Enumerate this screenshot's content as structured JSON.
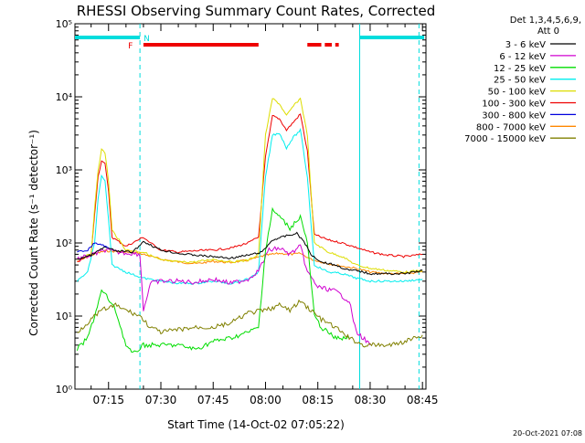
{
  "chart_data": {
    "type": "line",
    "title": "RHESSI Observing Summary Count Rates, Corrected",
    "ylabel": "Corrected Count Rate (s⁻¹ detector⁻¹)",
    "xlabel": "Start Time (14-Oct-02 07:05:22)",
    "footer": "20-Oct-2021 07:08",
    "yscale": "log",
    "ylim": [
      1,
      100000
    ],
    "y_ticks": [
      {
        "value": 1,
        "label": "10⁰"
      },
      {
        "value": 10,
        "label": "10¹"
      },
      {
        "value": 100,
        "label": "10²"
      },
      {
        "value": 1000,
        "label": "10³"
      },
      {
        "value": 10000,
        "label": "10⁴"
      },
      {
        "value": 100000,
        "label": "10⁵"
      }
    ],
    "xlim": [
      "07:05:22",
      "08:46:00"
    ],
    "x_ticks": [
      "07:15",
      "07:30",
      "07:45",
      "08:00",
      "08:15",
      "08:30",
      "08:45"
    ],
    "legend_header": [
      "Det 1,3,4,5,6,9,",
      "Att 0"
    ],
    "legend_position": "right",
    "series": [
      {
        "name": "3 - 6 keV",
        "color": "#000000",
        "points": [
          [
            "07:06",
            60
          ],
          [
            "07:10",
            68
          ],
          [
            "07:14",
            88
          ],
          [
            "07:17",
            78
          ],
          [
            "07:22",
            75
          ],
          [
            "07:25",
            105
          ],
          [
            "07:30",
            80
          ],
          [
            "07:35",
            72
          ],
          [
            "07:40",
            68
          ],
          [
            "07:45",
            65
          ],
          [
            "07:50",
            62
          ],
          [
            "07:55",
            68
          ],
          [
            "07:59",
            75
          ],
          [
            "08:02",
            110
          ],
          [
            "08:06",
            125
          ],
          [
            "08:09",
            135
          ],
          [
            "08:11",
            105
          ],
          [
            "08:13",
            70
          ],
          [
            "08:16",
            55
          ],
          [
            "08:20",
            50
          ],
          [
            "08:24",
            42
          ],
          [
            "08:26",
            42
          ],
          [
            "08:30",
            38
          ],
          [
            "08:35",
            38
          ],
          [
            "08:40",
            38
          ],
          [
            "08:45",
            42
          ]
        ]
      },
      {
        "name": "6 - 12 keV",
        "color": "#d000d0",
        "points": [
          [
            "07:06",
            60
          ],
          [
            "07:10",
            68
          ],
          [
            "07:14",
            80
          ],
          [
            "07:17",
            75
          ],
          [
            "07:22",
            72
          ],
          [
            "07:24",
            70
          ],
          [
            "07:25",
            12
          ],
          [
            "07:27",
            28
          ],
          [
            "07:30",
            30
          ],
          [
            "07:35",
            30
          ],
          [
            "07:40",
            29
          ],
          [
            "07:45",
            32
          ],
          [
            "07:50",
            28
          ],
          [
            "07:55",
            32
          ],
          [
            "07:58",
            42
          ],
          [
            "08:01",
            80
          ],
          [
            "08:04",
            85
          ],
          [
            "08:07",
            70
          ],
          [
            "08:10",
            90
          ],
          [
            "08:12",
            40
          ],
          [
            "08:15",
            25
          ],
          [
            "08:20",
            22
          ],
          [
            "08:24",
            16
          ],
          [
            "08:26",
            6
          ],
          [
            "08:28",
            5
          ],
          [
            "08:30",
            4
          ]
        ]
      },
      {
        "name": "12 - 25 keV",
        "color": "#00dd00",
        "points": [
          [
            "07:06",
            3.5
          ],
          [
            "07:09",
            5
          ],
          [
            "07:11",
            10
          ],
          [
            "07:13",
            22
          ],
          [
            "07:14",
            20
          ],
          [
            "07:17",
            12
          ],
          [
            "07:20",
            4
          ],
          [
            "07:22",
            3
          ],
          [
            "07:25",
            4
          ],
          [
            "07:30",
            4
          ],
          [
            "07:35",
            4
          ],
          [
            "07:40",
            3.5
          ],
          [
            "07:45",
            4.5
          ],
          [
            "07:50",
            5
          ],
          [
            "07:55",
            6
          ],
          [
            "07:58",
            7
          ],
          [
            "08:00",
            80
          ],
          [
            "08:02",
            280
          ],
          [
            "08:04",
            230
          ],
          [
            "08:07",
            160
          ],
          [
            "08:10",
            230
          ],
          [
            "08:12",
            100
          ],
          [
            "08:14",
            10
          ],
          [
            "08:16",
            7
          ],
          [
            "08:20",
            5
          ],
          [
            "08:24",
            5
          ]
        ]
      },
      {
        "name": "25 - 50 keV",
        "color": "#00eeee",
        "points": [
          [
            "07:06",
            30
          ],
          [
            "07:09",
            40
          ],
          [
            "07:11",
            100
          ],
          [
            "07:12",
            400
          ],
          [
            "07:13",
            820
          ],
          [
            "07:14",
            700
          ],
          [
            "07:15",
            200
          ],
          [
            "07:16",
            50
          ],
          [
            "07:20",
            40
          ],
          [
            "07:25",
            33
          ],
          [
            "07:30",
            30
          ],
          [
            "07:35",
            28
          ],
          [
            "07:40",
            28
          ],
          [
            "07:45",
            30
          ],
          [
            "07:50",
            28
          ],
          [
            "07:55",
            32
          ],
          [
            "07:58",
            40
          ],
          [
            "08:00",
            800
          ],
          [
            "08:02",
            3000
          ],
          [
            "08:04",
            3200
          ],
          [
            "08:06",
            2000
          ],
          [
            "08:08",
            2800
          ],
          [
            "08:10",
            3500
          ],
          [
            "08:12",
            800
          ],
          [
            "08:14",
            50
          ],
          [
            "08:18",
            40
          ],
          [
            "08:22",
            38
          ],
          [
            "08:26",
            33
          ],
          [
            "08:30",
            30
          ],
          [
            "08:35",
            30
          ],
          [
            "08:40",
            30
          ],
          [
            "08:45",
            32
          ]
        ]
      },
      {
        "name": "50 - 100 keV",
        "color": "#dddd00",
        "points": [
          [
            "07:06",
            60
          ],
          [
            "07:10",
            70
          ],
          [
            "07:11",
            300
          ],
          [
            "07:12",
            1000
          ],
          [
            "07:13",
            1900
          ],
          [
            "07:14",
            1700
          ],
          [
            "07:15",
            700
          ],
          [
            "07:16",
            150
          ],
          [
            "07:20",
            80
          ],
          [
            "07:25",
            75
          ],
          [
            "07:30",
            58
          ],
          [
            "07:35",
            55
          ],
          [
            "07:40",
            55
          ],
          [
            "07:45",
            60
          ],
          [
            "07:50",
            55
          ],
          [
            "07:55",
            58
          ],
          [
            "07:58",
            70
          ],
          [
            "08:00",
            3000
          ],
          [
            "08:02",
            9500
          ],
          [
            "08:04",
            8000
          ],
          [
            "08:06",
            5500
          ],
          [
            "08:08",
            7500
          ],
          [
            "08:10",
            9500
          ],
          [
            "08:12",
            3000
          ],
          [
            "08:14",
            100
          ],
          [
            "08:18",
            75
          ],
          [
            "08:22",
            65
          ],
          [
            "08:26",
            50
          ],
          [
            "08:30",
            45
          ],
          [
            "08:35",
            42
          ],
          [
            "08:40",
            40
          ],
          [
            "08:45",
            42
          ]
        ]
      },
      {
        "name": "100 - 300 keV",
        "color": "#ee0000",
        "points": [
          [
            "07:06",
            55
          ],
          [
            "07:10",
            70
          ],
          [
            "07:11",
            250
          ],
          [
            "07:12",
            800
          ],
          [
            "07:13",
            1350
          ],
          [
            "07:14",
            1200
          ],
          [
            "07:15",
            500
          ],
          [
            "07:16",
            120
          ],
          [
            "07:20",
            90
          ],
          [
            "07:25",
            120
          ],
          [
            "07:27",
            100
          ],
          [
            "07:30",
            80
          ],
          [
            "07:35",
            75
          ],
          [
            "07:40",
            78
          ],
          [
            "07:45",
            80
          ],
          [
            "07:50",
            85
          ],
          [
            "07:55",
            100
          ],
          [
            "07:58",
            120
          ],
          [
            "08:00",
            1500
          ],
          [
            "08:02",
            5500
          ],
          [
            "08:04",
            5000
          ],
          [
            "08:06",
            3500
          ],
          [
            "08:08",
            4500
          ],
          [
            "08:10",
            5800
          ],
          [
            "08:12",
            1800
          ],
          [
            "08:14",
            130
          ],
          [
            "08:18",
            110
          ],
          [
            "08:22",
            100
          ],
          [
            "08:25",
            90
          ],
          [
            "08:30",
            75
          ],
          [
            "08:35",
            68
          ],
          [
            "08:40",
            65
          ],
          [
            "08:45",
            70
          ]
        ]
      },
      {
        "name": "300 - 800 keV",
        "color": "#0000dd",
        "points": [
          [
            "07:06",
            75
          ],
          [
            "07:09",
            80
          ],
          [
            "07:11",
            100
          ],
          [
            "07:13",
            95
          ],
          [
            "07:15",
            85
          ]
        ]
      },
      {
        "name": "800 - 7000 keV",
        "color": "#ff8800",
        "points": [
          [
            "07:06",
            55
          ],
          [
            "07:10",
            68
          ],
          [
            "07:14",
            78
          ],
          [
            "07:18",
            76
          ],
          [
            "07:24",
            72
          ],
          [
            "07:30",
            60
          ],
          [
            "07:35",
            55
          ],
          [
            "07:40",
            52
          ],
          [
            "07:45",
            56
          ],
          [
            "07:50",
            54
          ],
          [
            "07:55",
            58
          ],
          [
            "08:00",
            68
          ],
          [
            "08:04",
            72
          ],
          [
            "08:08",
            70
          ],
          [
            "08:10",
            72
          ],
          [
            "08:13",
            60
          ],
          [
            "08:18",
            52
          ],
          [
            "08:22",
            48
          ],
          [
            "08:26",
            45
          ],
          [
            "08:30",
            40
          ],
          [
            "08:35",
            38
          ],
          [
            "08:40",
            38
          ],
          [
            "08:45",
            40
          ]
        ]
      },
      {
        "name": "7000 - 15000 keV",
        "color": "#808000",
        "points": [
          [
            "07:06",
            6
          ],
          [
            "07:10",
            9
          ],
          [
            "07:13",
            12
          ],
          [
            "07:17",
            14
          ],
          [
            "07:20",
            12
          ],
          [
            "07:24",
            10
          ],
          [
            "07:27",
            7
          ],
          [
            "07:30",
            6
          ],
          [
            "07:35",
            6.5
          ],
          [
            "07:40",
            7
          ],
          [
            "07:45",
            7
          ],
          [
            "07:50",
            8
          ],
          [
            "07:55",
            11
          ],
          [
            "08:00",
            12
          ],
          [
            "08:04",
            14
          ],
          [
            "08:07",
            12
          ],
          [
            "08:10",
            16
          ],
          [
            "08:13",
            12
          ],
          [
            "08:16",
            9
          ],
          [
            "08:20",
            7
          ],
          [
            "08:24",
            5
          ],
          [
            "08:28",
            4
          ],
          [
            "08:32",
            4
          ],
          [
            "08:36",
            4
          ],
          [
            "08:40",
            4.5
          ],
          [
            "08:45",
            5.5
          ]
        ]
      }
    ],
    "attenuator_bar": {
      "color": "#00dddd",
      "segments": [
        [
          "07:05:22",
          "07:24"
        ],
        [
          "08:27",
          "08:45:30"
        ]
      ],
      "markers": [
        {
          "time": "07:24",
          "label": "N"
        }
      ]
    },
    "flare_bar": {
      "color": "#ee0000",
      "segments": [
        [
          "07:25",
          "07:58"
        ],
        [
          "08:12",
          "08:16"
        ],
        [
          "08:17",
          "08:19"
        ],
        [
          "08:20",
          "08:21"
        ]
      ],
      "markers": [
        {
          "time": "07:23",
          "label": "F"
        }
      ]
    },
    "vlines": [
      {
        "time": "07:24",
        "style": "dashed",
        "color": "#00dddd"
      },
      {
        "time": "08:27",
        "style": "solid",
        "color": "#00dddd"
      },
      {
        "time": "08:44",
        "style": "dashed",
        "color": "#00dddd"
      }
    ]
  }
}
